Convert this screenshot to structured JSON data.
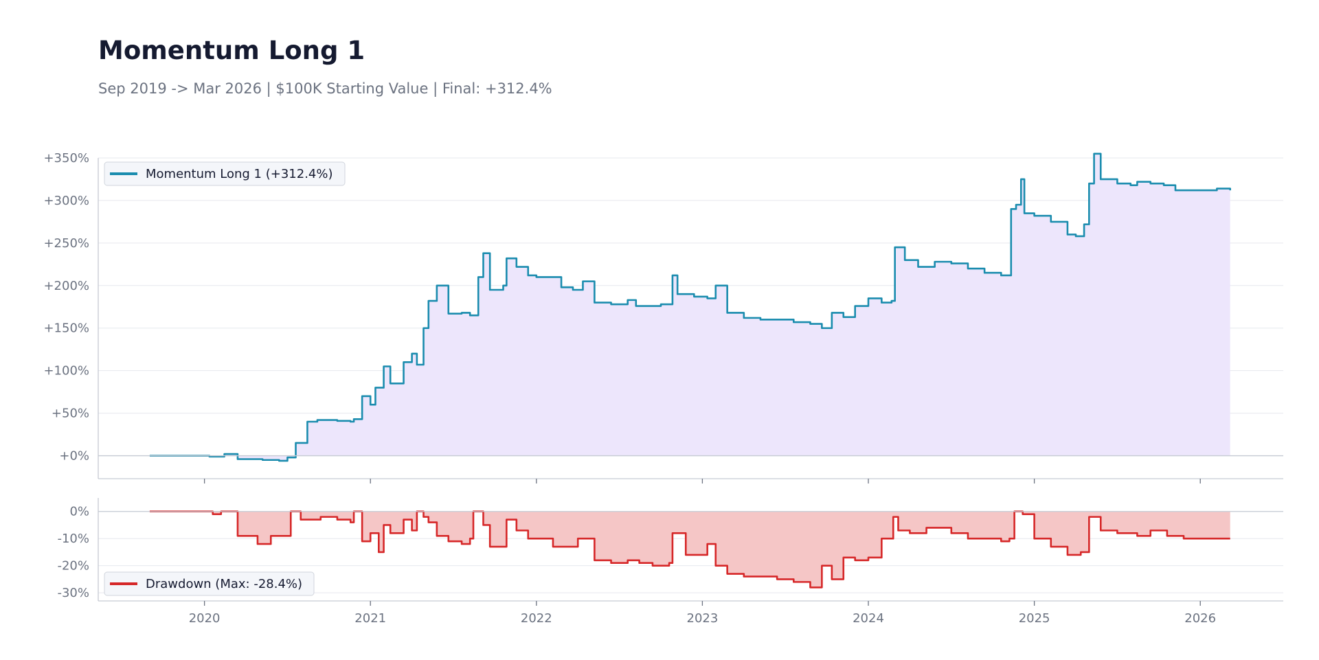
{
  "header": {
    "title": "Momentum Long 1",
    "subtitle": "Sep 2019 -> Mar 2026 | $100K Starting Value | Final: +312.4%"
  },
  "colors": {
    "equity_line": "#1a8cae",
    "equity_fill": "#ede6fc",
    "drawdown_line": "#d62728",
    "drawdown_fill": "#f5c6c6"
  },
  "chart_data": [
    {
      "type": "area",
      "name": "equity",
      "legend": "Momentum Long 1 (+312.4%)",
      "legend_position": "top-left",
      "grid": true,
      "ylim": [
        -27,
        350
      ],
      "xlim": [
        2019.36,
        2026.5
      ],
      "yticks": [
        0,
        50,
        100,
        150,
        200,
        250,
        300,
        350
      ],
      "ytick_labels": [
        "+0%",
        "+50%",
        "+100%",
        "+150%",
        "+200%",
        "+250%",
        "+300%",
        "+350%"
      ],
      "x": [
        2019.67,
        2020.0,
        2020.03,
        2020.12,
        2020.2,
        2020.35,
        2020.45,
        2020.5,
        2020.55,
        2020.62,
        2020.68,
        2020.8,
        2020.88,
        2020.9,
        2020.95,
        2021.0,
        2021.03,
        2021.08,
        2021.12,
        2021.2,
        2021.25,
        2021.28,
        2021.32,
        2021.35,
        2021.4,
        2021.47,
        2021.55,
        2021.6,
        2021.65,
        2021.68,
        2021.72,
        2021.8,
        2021.82,
        2021.88,
        2021.95,
        2022.0,
        2022.15,
        2022.22,
        2022.28,
        2022.35,
        2022.45,
        2022.55,
        2022.6,
        2022.75,
        2022.82,
        2022.85,
        2022.95,
        2023.03,
        2023.08,
        2023.15,
        2023.25,
        2023.35,
        2023.45,
        2023.55,
        2023.65,
        2023.72,
        2023.78,
        2023.85,
        2023.92,
        2024.0,
        2024.08,
        2024.14,
        2024.16,
        2024.22,
        2024.3,
        2024.4,
        2024.5,
        2024.6,
        2024.7,
        2024.8,
        2024.86,
        2024.89,
        2024.92,
        2024.94,
        2025.0,
        2025.1,
        2025.2,
        2025.25,
        2025.3,
        2025.33,
        2025.36,
        2025.4,
        2025.5,
        2025.58,
        2025.62,
        2025.7,
        2025.78,
        2025.85,
        2026.0,
        2026.1,
        2026.18
      ],
      "series": [
        {
          "values": [
            0,
            0,
            -1,
            2,
            -4,
            -5,
            -6,
            -2,
            15,
            40,
            42,
            41,
            40,
            43,
            70,
            60,
            80,
            105,
            85,
            110,
            120,
            107,
            150,
            182,
            200,
            167,
            168,
            165,
            210,
            238,
            195,
            200,
            232,
            222,
            212,
            210,
            198,
            195,
            205,
            180,
            178,
            183,
            176,
            178,
            212,
            190,
            187,
            185,
            200,
            168,
            162,
            160,
            160,
            157,
            155,
            150,
            168,
            163,
            176,
            185,
            180,
            182,
            245,
            230,
            222,
            228,
            226,
            220,
            215,
            212,
            290,
            295,
            325,
            285,
            282,
            275,
            260,
            258,
            272,
            320,
            355,
            325,
            320,
            318,
            322,
            320,
            318,
            312,
            312,
            314,
            312
          ]
        }
      ]
    },
    {
      "type": "area",
      "name": "drawdown",
      "legend": "Drawdown (Max: -28.4%)",
      "legend_position": "bottom-left",
      "grid": true,
      "ylim": [
        -33,
        5
      ],
      "xlim": [
        2019.36,
        2026.5
      ],
      "yticks": [
        0,
        -10,
        -20,
        -30
      ],
      "ytick_labels": [
        "0%",
        "-10%",
        "-20%",
        "-30%"
      ],
      "xticks": [
        2020,
        2021,
        2022,
        2023,
        2024,
        2025,
        2026
      ],
      "xtick_labels": [
        "2020",
        "2021",
        "2022",
        "2023",
        "2024",
        "2025",
        "2026"
      ],
      "x": [
        2019.67,
        2020.0,
        2020.05,
        2020.1,
        2020.2,
        2020.32,
        2020.4,
        2020.5,
        2020.52,
        2020.58,
        2020.7,
        2020.8,
        2020.88,
        2020.9,
        2020.95,
        2021.0,
        2021.05,
        2021.08,
        2021.12,
        2021.2,
        2021.25,
        2021.28,
        2021.32,
        2021.35,
        2021.4,
        2021.47,
        2021.55,
        2021.6,
        2021.62,
        2021.68,
        2021.72,
        2021.8,
        2021.82,
        2021.88,
        2021.95,
        2022.0,
        2022.1,
        2022.2,
        2022.25,
        2022.35,
        2022.45,
        2022.55,
        2022.62,
        2022.7,
        2022.8,
        2022.82,
        2022.9,
        2023.0,
        2023.03,
        2023.08,
        2023.15,
        2023.25,
        2023.35,
        2023.45,
        2023.55,
        2023.65,
        2023.72,
        2023.78,
        2023.85,
        2023.92,
        2024.0,
        2024.08,
        2024.15,
        2024.18,
        2024.25,
        2024.35,
        2024.5,
        2024.6,
        2024.7,
        2024.8,
        2024.85,
        2024.88,
        2024.93,
        2025.0,
        2025.1,
        2025.2,
        2025.28,
        2025.33,
        2025.4,
        2025.5,
        2025.62,
        2025.7,
        2025.8,
        2025.9,
        2026.0,
        2026.18
      ],
      "series": [
        {
          "values": [
            0,
            0,
            -1,
            0,
            -9,
            -12,
            -9,
            -9,
            0,
            -3,
            -2,
            -3,
            -4,
            0,
            -11,
            -8,
            -15,
            -5,
            -8,
            -3,
            -7,
            0,
            -2,
            -4,
            -9,
            -11,
            -12,
            -10,
            0,
            -5,
            -13,
            -13,
            -3,
            -7,
            -10,
            -10,
            -13,
            -13,
            -10,
            -18,
            -19,
            -18,
            -19,
            -20,
            -19,
            -8,
            -16,
            -16,
            -12,
            -20,
            -23,
            -24,
            -24,
            -25,
            -26,
            -28,
            -20,
            -25,
            -17,
            -18,
            -17,
            -10,
            -2,
            -7,
            -8,
            -6,
            -8,
            -10,
            -10,
            -11,
            -10,
            0,
            -1,
            -10,
            -13,
            -16,
            -15,
            -2,
            -7,
            -8,
            -9,
            -7,
            -9,
            -10,
            -10,
            -10
          ]
        }
      ]
    }
  ]
}
